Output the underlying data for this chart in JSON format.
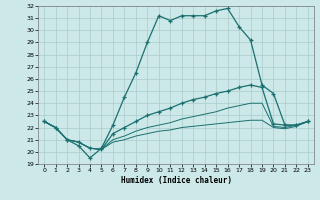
{
  "title": "",
  "xlabel": "Humidex (Indice chaleur)",
  "xlim": [
    -0.5,
    23.5
  ],
  "ylim": [
    19,
    32
  ],
  "yticks": [
    19,
    20,
    21,
    22,
    23,
    24,
    25,
    26,
    27,
    28,
    29,
    30,
    31,
    32
  ],
  "xticks": [
    0,
    1,
    2,
    3,
    4,
    5,
    6,
    7,
    8,
    9,
    10,
    11,
    12,
    13,
    14,
    15,
    16,
    17,
    18,
    19,
    20,
    21,
    22,
    23
  ],
  "background_color": "#cce8e8",
  "grid_color": "#aacccc",
  "line_color": "#1a7070",
  "line1_x": [
    0,
    1,
    2,
    3,
    4,
    5,
    6,
    7,
    8,
    9,
    10,
    11,
    12,
    13,
    14,
    15,
    16,
    17,
    18,
    19,
    20,
    21,
    22,
    23
  ],
  "line1_y": [
    22.5,
    22.0,
    21.0,
    20.5,
    19.5,
    20.3,
    22.2,
    24.5,
    26.5,
    29.0,
    31.2,
    30.8,
    31.2,
    31.2,
    31.2,
    31.6,
    31.8,
    30.3,
    29.2,
    25.5,
    24.8,
    22.2,
    22.2,
    22.5
  ],
  "line2_x": [
    0,
    1,
    2,
    3,
    4,
    5,
    6,
    7,
    8,
    9,
    10,
    11,
    12,
    13,
    14,
    15,
    16,
    17,
    18,
    19,
    20,
    21,
    22,
    23
  ],
  "line2_y": [
    22.5,
    22.0,
    21.0,
    20.8,
    20.3,
    20.2,
    21.5,
    22.0,
    22.5,
    23.0,
    23.3,
    23.6,
    24.0,
    24.3,
    24.5,
    24.8,
    25.0,
    25.3,
    25.5,
    25.3,
    22.3,
    22.2,
    22.2,
    22.5
  ],
  "line3_x": [
    0,
    1,
    2,
    3,
    4,
    5,
    6,
    7,
    8,
    9,
    10,
    11,
    12,
    13,
    14,
    15,
    16,
    17,
    18,
    19,
    20,
    21,
    22,
    23
  ],
  "line3_y": [
    22.5,
    22.0,
    21.0,
    20.8,
    20.3,
    20.2,
    21.0,
    21.3,
    21.7,
    22.0,
    22.2,
    22.4,
    22.7,
    22.9,
    23.1,
    23.3,
    23.6,
    23.8,
    24.0,
    24.0,
    22.1,
    22.0,
    22.2,
    22.5
  ],
  "line4_x": [
    0,
    1,
    2,
    3,
    4,
    5,
    6,
    7,
    8,
    9,
    10,
    11,
    12,
    13,
    14,
    15,
    16,
    17,
    18,
    19,
    20,
    21,
    22,
    23
  ],
  "line4_y": [
    22.5,
    22.0,
    21.0,
    20.8,
    20.3,
    20.2,
    20.8,
    21.0,
    21.3,
    21.5,
    21.7,
    21.8,
    22.0,
    22.1,
    22.2,
    22.3,
    22.4,
    22.5,
    22.6,
    22.6,
    22.0,
    21.9,
    22.1,
    22.5
  ]
}
